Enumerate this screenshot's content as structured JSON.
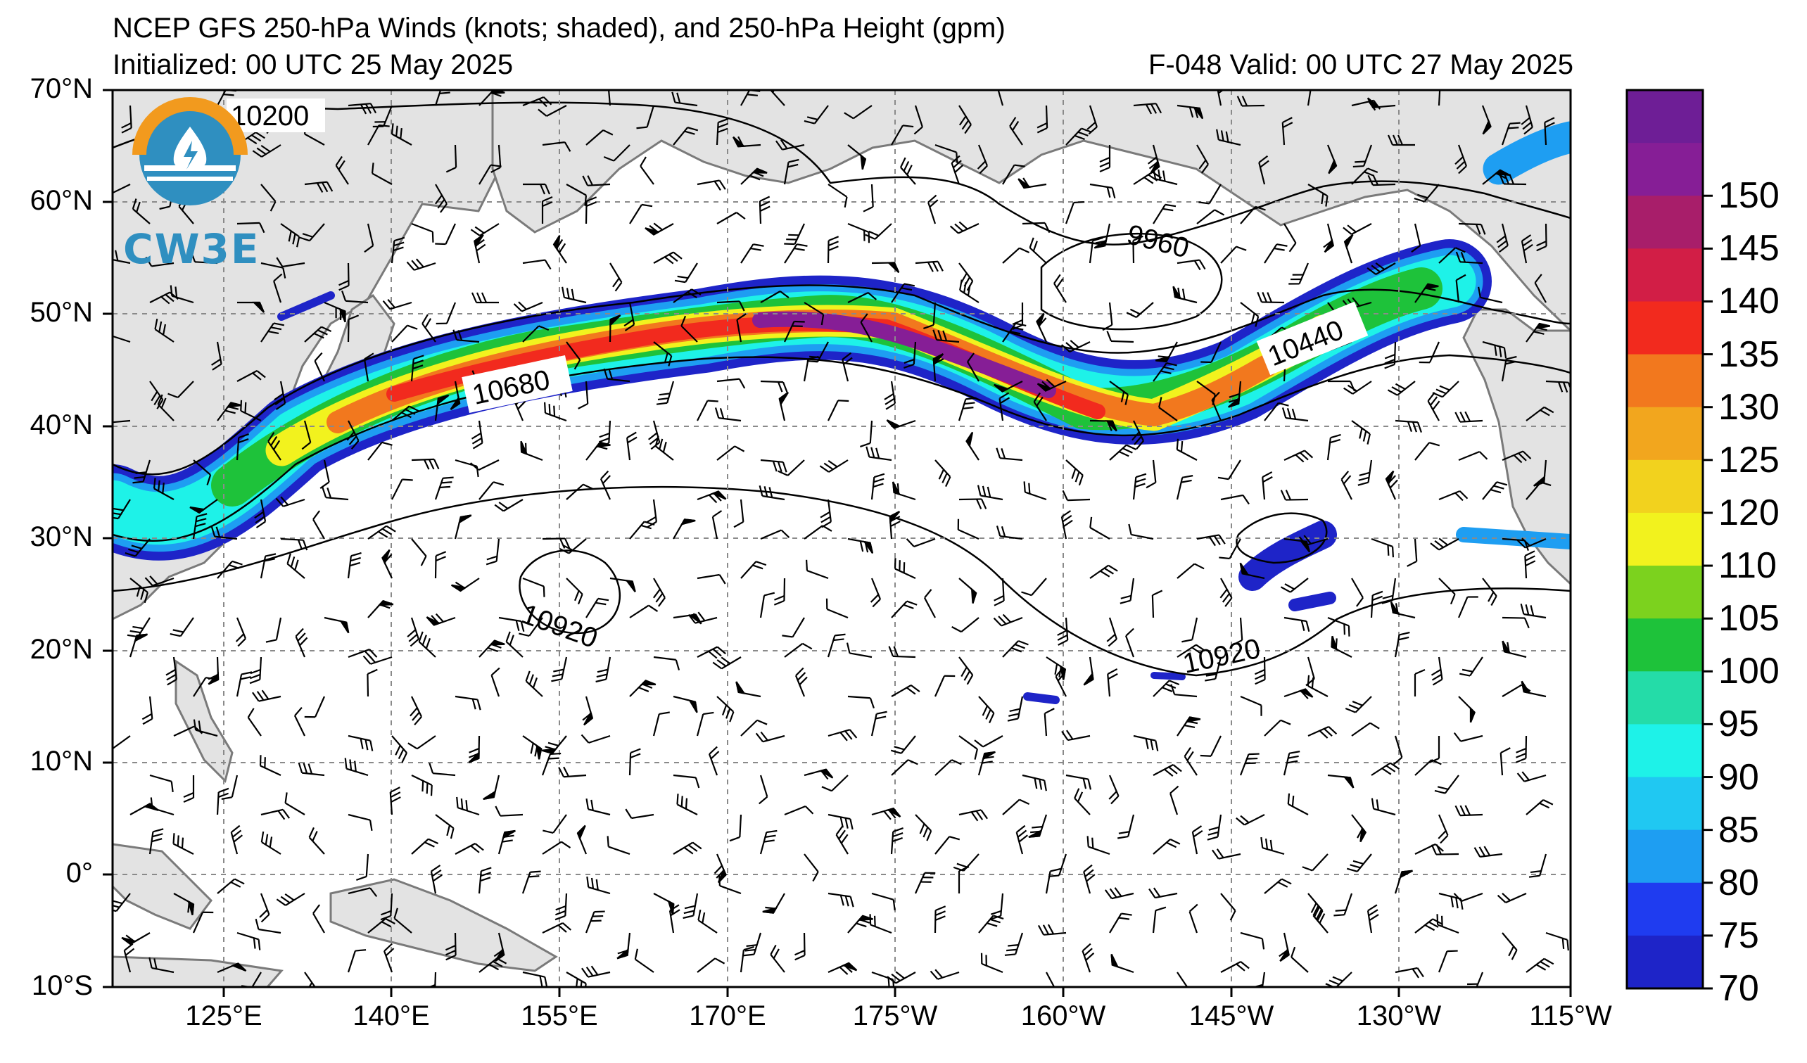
{
  "header": {
    "title": "NCEP GFS 250-hPa Winds (knots; shaded), and 250-hPa Height (gpm)",
    "initialized": "Initialized: 00 UTC 25 May 2025",
    "valid": "F-048  Valid: 00 UTC 27 May 2025"
  },
  "logo": {
    "text": "CW3E",
    "icon": "water-drop-lightning-icon"
  },
  "map": {
    "lat_labels": [
      "70°N",
      "60°N",
      "50°N",
      "40°N",
      "30°N",
      "20°N",
      "10°N",
      "0°",
      "10°S"
    ],
    "lon_labels": [
      "125°E",
      "140°E",
      "155°E",
      "170°E",
      "175°W",
      "160°W",
      "145°W",
      "130°W",
      "115°W"
    ],
    "contour_labels": [
      "10200",
      "9960",
      "10680",
      "10440",
      "10920",
      "10920"
    ],
    "colors": {
      "land": "#e3e3e3",
      "coast": "#7a7a7a",
      "grid": "#8a8a8a",
      "contour": "#000000"
    }
  },
  "colorbar": {
    "levels": [
      "70",
      "75",
      "80",
      "85",
      "90",
      "95",
      "100",
      "105",
      "110",
      "120",
      "125",
      "130",
      "135",
      "140",
      "145",
      "150"
    ],
    "colors": [
      "#1e24c8",
      "#1f3cf0",
      "#1e9ef2",
      "#20c8f2",
      "#1ef2e8",
      "#24dca8",
      "#1ec23a",
      "#7cd21e",
      "#f2f21e",
      "#f2d21e",
      "#f2a61e",
      "#f2781e",
      "#f22a1e",
      "#d21e46",
      "#a81e6a",
      "#861e96",
      "#6e1e96"
    ]
  }
}
